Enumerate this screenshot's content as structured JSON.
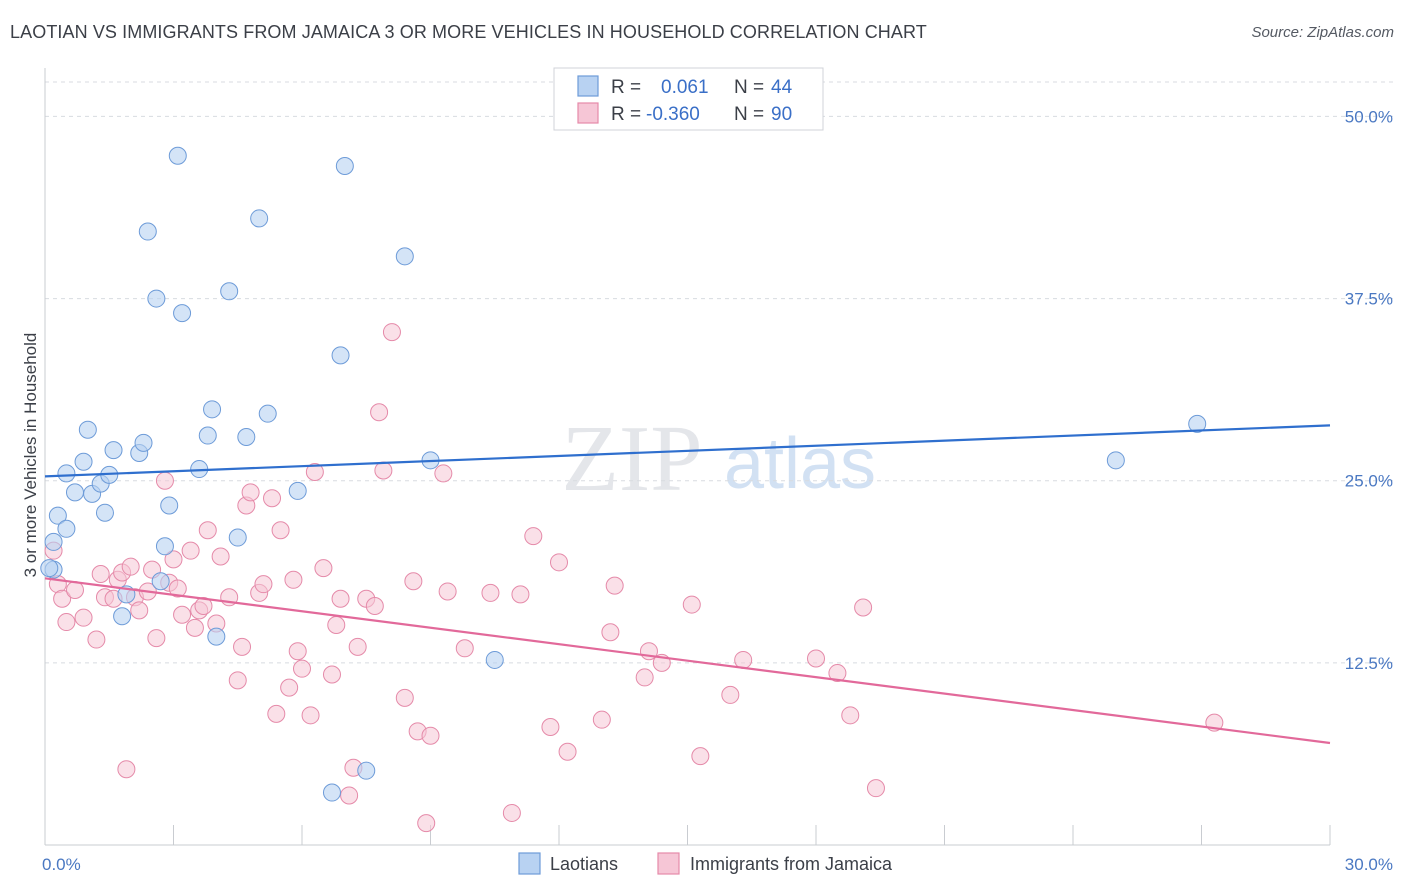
{
  "header": {
    "title": "LAOTIAN VS IMMIGRANTS FROM JAMAICA 3 OR MORE VEHICLES IN HOUSEHOLD CORRELATION CHART",
    "source": "Source: ZipAtlas.com"
  },
  "watermark": {
    "zip": "ZIP",
    "atlas": "atlas"
  },
  "legend_top": {
    "rows": [
      {
        "r_label": "R =",
        "r_value": "0.061",
        "n_label": "N =",
        "n_value": "44"
      },
      {
        "r_label": "R =",
        "r_value": "-0.360",
        "n_label": "N =",
        "n_value": "90"
      }
    ]
  },
  "legend_bottom": {
    "items": [
      {
        "label": "Laotians"
      },
      {
        "label": "Immigrants from Jamaica"
      }
    ]
  },
  "colors": {
    "blue_fill": "#b8d2f2",
    "blue_stroke": "#6d9bd8",
    "blue_line": "#2f6fce",
    "pink_fill": "#f6c6d6",
    "pink_stroke": "#e58aa9",
    "pink_line": "#e2699a",
    "grid": "#d8dbe0",
    "tick_text": "#4a78c2"
  },
  "chart_data": {
    "type": "scatter",
    "title": "LAOTIAN VS IMMIGRANTS FROM JAMAICA 3 OR MORE VEHICLES IN HOUSEHOLD CORRELATION CHART",
    "xlabel": "",
    "ylabel": "3 or more Vehicles in Household",
    "xlim": [
      0,
      30
    ],
    "ylim": [
      0,
      52.5
    ],
    "x_tick_labels": [
      "0.0%",
      "30.0%"
    ],
    "y_ticks": [
      12.5,
      25.0,
      37.5,
      50.0
    ],
    "y_tick_labels": [
      "12.5%",
      "25.0%",
      "37.5%",
      "50.0%"
    ],
    "grid": true,
    "legend_position": "top-center",
    "series": [
      {
        "name": "Laotians",
        "color": "#b8d2f2",
        "trend": {
          "x": [
            0,
            30
          ],
          "y": [
            25.3,
            28.8
          ]
        },
        "points": [
          [
            0.2,
            20.8
          ],
          [
            0.2,
            18.9
          ],
          [
            0.3,
            22.6
          ],
          [
            0.5,
            21.7
          ],
          [
            0.5,
            25.5
          ],
          [
            0.7,
            24.2
          ],
          [
            0.9,
            26.3
          ],
          [
            1.0,
            28.5
          ],
          [
            1.1,
            24.1
          ],
          [
            1.3,
            24.8
          ],
          [
            1.4,
            22.8
          ],
          [
            1.5,
            25.4
          ],
          [
            1.6,
            27.1
          ],
          [
            1.8,
            15.7
          ],
          [
            1.9,
            17.2
          ],
          [
            2.2,
            26.9
          ],
          [
            2.3,
            27.6
          ],
          [
            2.4,
            42.1
          ],
          [
            2.6,
            37.5
          ],
          [
            2.7,
            18.1
          ],
          [
            2.8,
            20.5
          ],
          [
            2.9,
            23.3
          ],
          [
            3.1,
            47.3
          ],
          [
            3.2,
            36.5
          ],
          [
            3.6,
            25.8
          ],
          [
            3.8,
            28.1
          ],
          [
            3.9,
            29.9
          ],
          [
            4.0,
            14.3
          ],
          [
            4.3,
            38.0
          ],
          [
            4.5,
            21.1
          ],
          [
            4.7,
            28.0
          ],
          [
            5.0,
            43.0
          ],
          [
            5.2,
            29.6
          ],
          [
            5.9,
            24.3
          ],
          [
            6.7,
            3.6
          ],
          [
            6.9,
            33.6
          ],
          [
            7.0,
            46.6
          ],
          [
            7.5,
            5.1
          ],
          [
            8.4,
            40.4
          ],
          [
            9.0,
            26.4
          ],
          [
            10.5,
            12.7
          ],
          [
            25.0,
            26.4
          ],
          [
            26.9,
            28.9
          ],
          [
            0.1,
            19.0
          ]
        ]
      },
      {
        "name": "Immigrants from Jamaica",
        "color": "#f6c6d6",
        "trend": {
          "x": [
            0,
            30
          ],
          "y": [
            18.3,
            7.0
          ]
        },
        "points": [
          [
            0.2,
            20.2
          ],
          [
            0.3,
            17.9
          ],
          [
            0.4,
            16.9
          ],
          [
            0.5,
            15.3
          ],
          [
            0.7,
            17.5
          ],
          [
            0.9,
            15.6
          ],
          [
            1.2,
            14.1
          ],
          [
            1.3,
            18.6
          ],
          [
            1.4,
            17.0
          ],
          [
            1.6,
            16.9
          ],
          [
            1.7,
            18.2
          ],
          [
            1.8,
            18.7
          ],
          [
            1.9,
            5.2
          ],
          [
            2.0,
            19.1
          ],
          [
            2.1,
            17.0
          ],
          [
            2.2,
            16.1
          ],
          [
            2.4,
            17.4
          ],
          [
            2.5,
            18.9
          ],
          [
            2.6,
            14.2
          ],
          [
            2.8,
            25.0
          ],
          [
            2.9,
            18.0
          ],
          [
            3.0,
            19.6
          ],
          [
            3.1,
            17.6
          ],
          [
            3.2,
            15.8
          ],
          [
            3.4,
            20.2
          ],
          [
            3.5,
            14.9
          ],
          [
            3.6,
            16.1
          ],
          [
            3.7,
            16.4
          ],
          [
            3.8,
            21.6
          ],
          [
            4.0,
            15.2
          ],
          [
            4.1,
            19.8
          ],
          [
            4.3,
            17.0
          ],
          [
            4.5,
            11.3
          ],
          [
            4.6,
            13.6
          ],
          [
            4.7,
            23.3
          ],
          [
            4.8,
            24.2
          ],
          [
            5.0,
            17.3
          ],
          [
            5.1,
            17.9
          ],
          [
            5.3,
            23.8
          ],
          [
            5.4,
            9.0
          ],
          [
            5.5,
            21.6
          ],
          [
            5.7,
            10.8
          ],
          [
            5.8,
            18.2
          ],
          [
            5.9,
            13.3
          ],
          [
            6.0,
            12.1
          ],
          [
            6.2,
            8.9
          ],
          [
            6.3,
            25.6
          ],
          [
            6.5,
            19.0
          ],
          [
            6.7,
            11.7
          ],
          [
            6.8,
            15.1
          ],
          [
            6.9,
            16.9
          ],
          [
            7.1,
            3.4
          ],
          [
            7.2,
            5.3
          ],
          [
            7.3,
            13.6
          ],
          [
            7.5,
            16.9
          ],
          [
            7.7,
            16.4
          ],
          [
            7.8,
            29.7
          ],
          [
            7.9,
            25.7
          ],
          [
            8.1,
            35.2
          ],
          [
            8.4,
            10.1
          ],
          [
            8.6,
            18.1
          ],
          [
            8.7,
            7.8
          ],
          [
            8.9,
            1.5
          ],
          [
            9.0,
            7.5
          ],
          [
            9.3,
            25.5
          ],
          [
            9.4,
            17.4
          ],
          [
            9.8,
            13.5
          ],
          [
            10.4,
            17.3
          ],
          [
            10.9,
            2.2
          ],
          [
            11.1,
            17.2
          ],
          [
            11.4,
            21.2
          ],
          [
            11.8,
            8.1
          ],
          [
            12.0,
            19.4
          ],
          [
            12.2,
            6.4
          ],
          [
            13.0,
            8.6
          ],
          [
            13.2,
            14.6
          ],
          [
            13.3,
            17.8
          ],
          [
            14.0,
            11.5
          ],
          [
            14.1,
            13.3
          ],
          [
            14.4,
            12.5
          ],
          [
            15.1,
            16.5
          ],
          [
            15.3,
            6.1
          ],
          [
            16.0,
            10.3
          ],
          [
            16.3,
            12.7
          ],
          [
            18.0,
            12.8
          ],
          [
            18.5,
            11.8
          ],
          [
            18.8,
            8.9
          ],
          [
            19.1,
            16.3
          ],
          [
            19.4,
            3.9
          ],
          [
            27.3,
            8.4
          ]
        ]
      }
    ]
  }
}
